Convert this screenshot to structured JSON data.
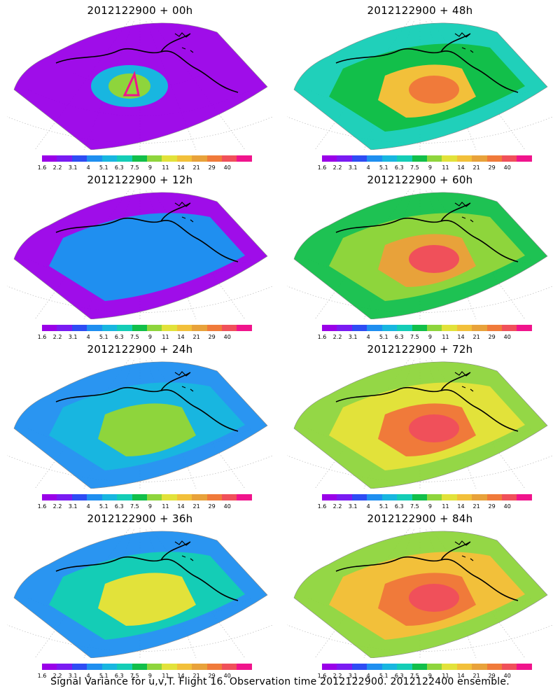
{
  "panels": [
    {
      "title": "2012122900 + 00h",
      "level": 0
    },
    {
      "title": "2012122900 + 48h",
      "level": 4
    },
    {
      "title": "2012122900 + 12h",
      "level": 1
    },
    {
      "title": "2012122900 + 60h",
      "level": 5
    },
    {
      "title": "2012122900 + 24h",
      "level": 2
    },
    {
      "title": "2012122900 + 72h",
      "level": 6
    },
    {
      "title": "2012122900 + 36h",
      "level": 3
    },
    {
      "title": "2012122900 + 84h",
      "level": 7
    }
  ],
  "colorbar": {
    "colors": [
      "#9a00e8",
      "#7a1bf2",
      "#2e4cf4",
      "#1f8ff0",
      "#18b6e0",
      "#14cdb6",
      "#12bf4a",
      "#8ed53c",
      "#e2e23a",
      "#f2c03a",
      "#e8a23a",
      "#f07a3a",
      "#f0505a",
      "#f0148c"
    ],
    "labels": [
      "1.6",
      "2.2",
      "3.1",
      "4",
      "5.1",
      "6.3",
      "7.5",
      "9",
      "11",
      "14",
      "21",
      "29",
      "40"
    ]
  },
  "caption": "Signal Variance for u,v,T. Flight 16. Observation time 2012122900. 2012122400 ensemble."
}
